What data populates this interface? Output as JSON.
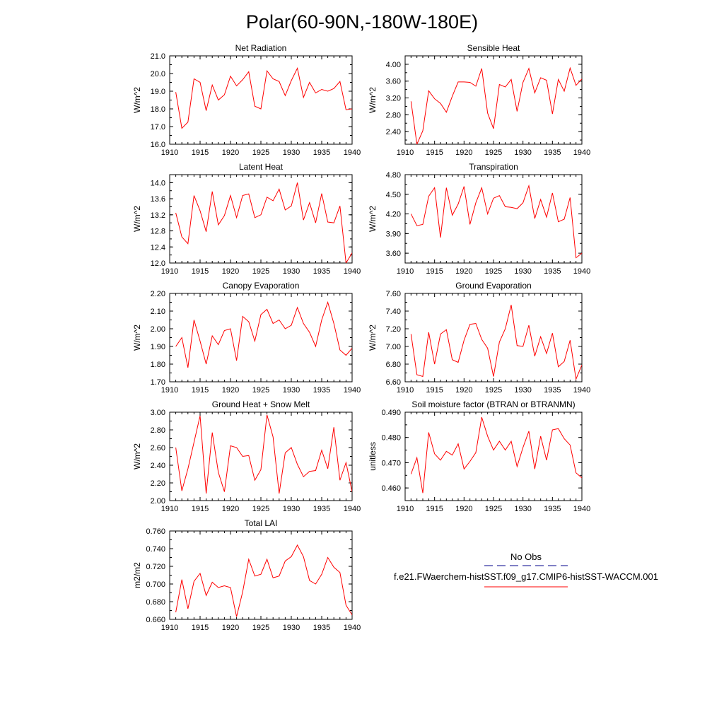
{
  "title": "Polar(60-90N,-180W-180E)",
  "legend": {
    "entries": [
      {
        "label": "No Obs",
        "color": "#00008b",
        "style": "dashed"
      },
      {
        "label": "f.e21.FWaerchem-histSST.f09_g17.CMIP6-histSST-WACCM.001",
        "color": "#ff0000",
        "style": "solid"
      }
    ]
  },
  "line_color": "#ff0000",
  "chart_data": [
    {
      "type": "line",
      "title": "Net Radiation",
      "ylabel": "W/m^2",
      "xlim": [
        1910,
        1940
      ],
      "ylim": [
        16.0,
        21.0
      ],
      "xticks": [
        1910,
        1915,
        1920,
        1925,
        1930,
        1935,
        1940
      ],
      "yticks": [
        16.0,
        17.0,
        18.0,
        19.0,
        20.0,
        21.0
      ],
      "ytick_labels": [
        "16.0",
        "17.0",
        "18.0",
        "19.0",
        "20.0",
        "21.0"
      ],
      "x": [
        1911,
        1912,
        1913,
        1914,
        1915,
        1916,
        1917,
        1918,
        1919,
        1920,
        1921,
        1922,
        1923,
        1924,
        1925,
        1926,
        1927,
        1928,
        1929,
        1930,
        1931,
        1932,
        1933,
        1934,
        1935,
        1936,
        1937,
        1938,
        1939,
        1940
      ],
      "series": [
        {
          "values": [
            18.95,
            16.9,
            17.25,
            19.7,
            19.5,
            17.9,
            19.35,
            18.5,
            18.8,
            19.85,
            19.3,
            19.65,
            20.1,
            18.15,
            18.0,
            20.15,
            19.7,
            19.55,
            18.75,
            19.6,
            20.3,
            18.65,
            19.5,
            18.9,
            19.1,
            19.0,
            19.15,
            19.55,
            17.95,
            18.0
          ]
        }
      ]
    },
    {
      "type": "line",
      "title": "Sensible Heat",
      "ylabel": "W/m^2",
      "xlim": [
        1910,
        1940
      ],
      "ylim": [
        2.1,
        4.2
      ],
      "xticks": [
        1910,
        1915,
        1920,
        1925,
        1930,
        1935,
        1940
      ],
      "yticks": [
        2.4,
        2.8,
        3.2,
        3.6,
        4.0
      ],
      "ytick_labels": [
        "2.40",
        "2.80",
        "3.20",
        "3.60",
        "4.00"
      ],
      "x": [
        1911,
        1912,
        1913,
        1914,
        1915,
        1916,
        1917,
        1918,
        1919,
        1920,
        1921,
        1922,
        1923,
        1924,
        1925,
        1926,
        1927,
        1928,
        1929,
        1930,
        1931,
        1932,
        1933,
        1934,
        1935,
        1936,
        1937,
        1938,
        1939,
        1940
      ],
      "series": [
        {
          "values": [
            3.12,
            2.1,
            2.42,
            3.37,
            3.18,
            3.07,
            2.86,
            3.24,
            3.58,
            3.58,
            3.57,
            3.48,
            3.9,
            2.84,
            2.47,
            3.52,
            3.46,
            3.64,
            2.88,
            3.57,
            3.9,
            3.32,
            3.68,
            3.62,
            2.82,
            3.64,
            3.36,
            3.91,
            3.5,
            3.65
          ]
        }
      ]
    },
    {
      "type": "line",
      "title": "Latent Heat",
      "ylabel": "W/m^2",
      "xlim": [
        1910,
        1940
      ],
      "ylim": [
        12.0,
        14.2
      ],
      "xticks": [
        1910,
        1915,
        1920,
        1925,
        1930,
        1935,
        1940
      ],
      "yticks": [
        12.0,
        12.4,
        12.8,
        13.2,
        13.6,
        14.0
      ],
      "ytick_labels": [
        "12.0",
        "12.4",
        "12.8",
        "13.2",
        "13.6",
        "14.0"
      ],
      "x": [
        1911,
        1912,
        1913,
        1914,
        1915,
        1916,
        1917,
        1918,
        1919,
        1920,
        1921,
        1922,
        1923,
        1924,
        1925,
        1926,
        1927,
        1928,
        1929,
        1930,
        1931,
        1932,
        1933,
        1934,
        1935,
        1936,
        1937,
        1938,
        1939,
        1940
      ],
      "series": [
        {
          "values": [
            13.25,
            12.65,
            12.48,
            13.68,
            13.3,
            12.78,
            13.78,
            12.95,
            13.18,
            13.68,
            13.13,
            13.68,
            13.72,
            13.13,
            13.2,
            13.64,
            13.55,
            13.84,
            13.32,
            13.42,
            14.0,
            13.07,
            13.5,
            13.0,
            13.73,
            13.02,
            13.0,
            13.42,
            12.0,
            12.25
          ]
        }
      ]
    },
    {
      "type": "line",
      "title": "Transpiration",
      "ylabel": "W/m^2",
      "xlim": [
        1910,
        1940
      ],
      "ylim": [
        3.45,
        4.8
      ],
      "xticks": [
        1910,
        1915,
        1920,
        1925,
        1930,
        1935,
        1940
      ],
      "yticks": [
        3.6,
        3.9,
        4.2,
        4.5,
        4.8
      ],
      "ytick_labels": [
        "3.60",
        "3.90",
        "4.20",
        "4.50",
        "4.80"
      ],
      "x": [
        1911,
        1912,
        1913,
        1914,
        1915,
        1916,
        1917,
        1918,
        1919,
        1920,
        1921,
        1922,
        1923,
        1924,
        1925,
        1926,
        1927,
        1928,
        1929,
        1930,
        1931,
        1932,
        1933,
        1934,
        1935,
        1936,
        1937,
        1938,
        1939,
        1940
      ],
      "series": [
        {
          "values": [
            4.2,
            4.02,
            4.04,
            4.47,
            4.6,
            3.84,
            4.6,
            4.18,
            4.35,
            4.62,
            4.04,
            4.37,
            4.6,
            4.2,
            4.44,
            4.48,
            4.31,
            4.3,
            4.28,
            4.37,
            4.63,
            4.13,
            4.42,
            4.15,
            4.52,
            4.08,
            4.12,
            4.45,
            3.53,
            3.6
          ]
        }
      ]
    },
    {
      "type": "line",
      "title": "Canopy Evaporation",
      "ylabel": "W/m^2",
      "xlim": [
        1910,
        1940
      ],
      "ylim": [
        1.7,
        2.2
      ],
      "xticks": [
        1910,
        1915,
        1920,
        1925,
        1930,
        1935,
        1940
      ],
      "yticks": [
        1.7,
        1.8,
        1.9,
        2.0,
        2.1,
        2.2
      ],
      "ytick_labels": [
        "1.70",
        "1.80",
        "1.90",
        "2.00",
        "2.10",
        "2.20"
      ],
      "x": [
        1911,
        1912,
        1913,
        1914,
        1915,
        1916,
        1917,
        1918,
        1919,
        1920,
        1921,
        1922,
        1923,
        1924,
        1925,
        1926,
        1927,
        1928,
        1929,
        1930,
        1931,
        1932,
        1933,
        1934,
        1935,
        1936,
        1937,
        1938,
        1939,
        1940
      ],
      "series": [
        {
          "values": [
            1.9,
            1.95,
            1.78,
            2.05,
            1.93,
            1.8,
            1.96,
            1.91,
            1.99,
            2.0,
            1.82,
            2.07,
            2.04,
            1.93,
            2.08,
            2.11,
            2.03,
            2.05,
            2.0,
            2.02,
            2.12,
            2.03,
            1.98,
            1.9,
            2.05,
            2.15,
            2.03,
            1.88,
            1.85,
            1.89
          ]
        }
      ]
    },
    {
      "type": "line",
      "title": "Ground Evaporation",
      "ylabel": "W/m^2",
      "xlim": [
        1910,
        1940
      ],
      "ylim": [
        6.6,
        7.6
      ],
      "xticks": [
        1910,
        1915,
        1920,
        1925,
        1930,
        1935,
        1940
      ],
      "yticks": [
        6.6,
        6.8,
        7.0,
        7.2,
        7.4,
        7.6
      ],
      "ytick_labels": [
        "6.60",
        "6.80",
        "7.00",
        "7.20",
        "7.40",
        "7.60"
      ],
      "x": [
        1911,
        1912,
        1913,
        1914,
        1915,
        1916,
        1917,
        1918,
        1919,
        1920,
        1921,
        1922,
        1923,
        1924,
        1925,
        1926,
        1927,
        1928,
        1929,
        1930,
        1931,
        1932,
        1933,
        1934,
        1935,
        1936,
        1937,
        1938,
        1939,
        1940
      ],
      "series": [
        {
          "values": [
            7.14,
            6.68,
            6.66,
            7.16,
            6.8,
            7.14,
            7.19,
            6.85,
            6.82,
            7.07,
            7.25,
            7.26,
            7.08,
            6.98,
            6.66,
            7.05,
            7.2,
            7.47,
            7.01,
            7.0,
            7.24,
            6.89,
            7.11,
            6.92,
            7.15,
            6.77,
            6.83,
            7.07,
            6.63,
            6.79
          ]
        }
      ]
    },
    {
      "type": "line",
      "title": "Ground Heat + Snow Melt",
      "ylabel": "W/m^2",
      "xlim": [
        1910,
        1940
      ],
      "ylim": [
        2.0,
        3.0
      ],
      "xticks": [
        1910,
        1915,
        1920,
        1925,
        1930,
        1935,
        1940
      ],
      "yticks": [
        2.0,
        2.2,
        2.4,
        2.6,
        2.8,
        3.0
      ],
      "ytick_labels": [
        "2.00",
        "2.20",
        "2.40",
        "2.60",
        "2.80",
        "3.00"
      ],
      "x": [
        1911,
        1912,
        1913,
        1914,
        1915,
        1916,
        1917,
        1918,
        1919,
        1920,
        1921,
        1922,
        1923,
        1924,
        1925,
        1926,
        1927,
        1928,
        1929,
        1930,
        1931,
        1932,
        1933,
        1934,
        1935,
        1936,
        1937,
        1938,
        1939,
        1940
      ],
      "series": [
        {
          "values": [
            2.6,
            2.11,
            2.36,
            2.66,
            2.96,
            2.08,
            2.77,
            2.32,
            2.1,
            2.62,
            2.6,
            2.5,
            2.51,
            2.23,
            2.35,
            2.97,
            2.72,
            2.08,
            2.54,
            2.6,
            2.41,
            2.27,
            2.33,
            2.34,
            2.57,
            2.36,
            2.83,
            2.23,
            2.43,
            2.1
          ]
        }
      ]
    },
    {
      "type": "line",
      "title": "Soil moisture factor (BTRAN or BTRANMN)",
      "ylabel": "unitless",
      "xlim": [
        1910,
        1940
      ],
      "ylim": [
        0.455,
        0.49
      ],
      "xticks": [
        1910,
        1915,
        1920,
        1925,
        1930,
        1935,
        1940
      ],
      "yticks": [
        0.46,
        0.47,
        0.48,
        0.49
      ],
      "ytick_labels": [
        "0.460",
        "0.470",
        "0.480",
        "0.490"
      ],
      "x": [
        1911,
        1912,
        1913,
        1914,
        1915,
        1916,
        1917,
        1918,
        1919,
        1920,
        1921,
        1922,
        1923,
        1924,
        1925,
        1926,
        1927,
        1928,
        1929,
        1930,
        1931,
        1932,
        1933,
        1934,
        1935,
        1936,
        1937,
        1938,
        1939,
        1940
      ],
      "series": [
        {
          "values": [
            0.4655,
            0.472,
            0.458,
            0.482,
            0.4735,
            0.471,
            0.4745,
            0.473,
            0.4775,
            0.4675,
            0.4705,
            0.474,
            0.488,
            0.4805,
            0.475,
            0.4785,
            0.475,
            0.4785,
            0.4685,
            0.476,
            0.4825,
            0.4675,
            0.4805,
            0.471,
            0.483,
            0.4835,
            0.4795,
            0.477,
            0.466,
            0.464
          ]
        }
      ]
    },
    {
      "type": "line",
      "title": "Total LAI",
      "ylabel": "m2/m2",
      "xlim": [
        1910,
        1940
      ],
      "ylim": [
        0.66,
        0.76
      ],
      "xticks": [
        1910,
        1915,
        1920,
        1925,
        1930,
        1935,
        1940
      ],
      "yticks": [
        0.66,
        0.68,
        0.7,
        0.72,
        0.74,
        0.76
      ],
      "ytick_labels": [
        "0.660",
        "0.680",
        "0.700",
        "0.720",
        "0.740",
        "0.760"
      ],
      "x": [
        1911,
        1912,
        1913,
        1914,
        1915,
        1916,
        1917,
        1918,
        1919,
        1920,
        1921,
        1922,
        1923,
        1924,
        1925,
        1926,
        1927,
        1928,
        1929,
        1930,
        1931,
        1932,
        1933,
        1934,
        1935,
        1936,
        1937,
        1938,
        1939,
        1940
      ],
      "series": [
        {
          "values": [
            0.668,
            0.705,
            0.672,
            0.703,
            0.712,
            0.687,
            0.702,
            0.696,
            0.698,
            0.696,
            0.663,
            0.691,
            0.728,
            0.709,
            0.711,
            0.728,
            0.707,
            0.709,
            0.726,
            0.731,
            0.744,
            0.731,
            0.704,
            0.7,
            0.711,
            0.73,
            0.719,
            0.713,
            0.676,
            0.665
          ]
        }
      ]
    }
  ]
}
